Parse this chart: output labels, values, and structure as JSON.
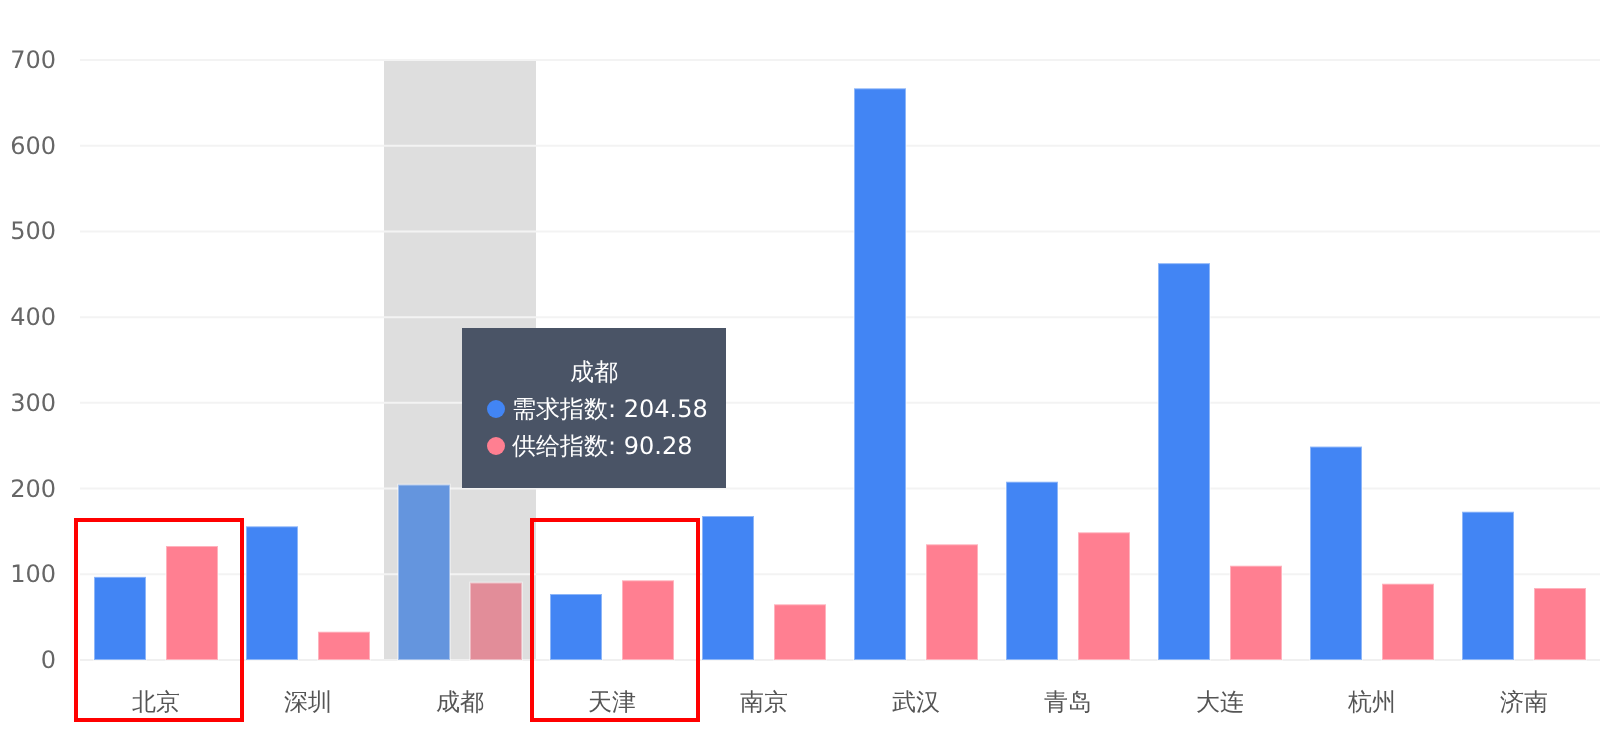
{
  "chart_data": {
    "type": "bar",
    "categories": [
      "北京",
      "深圳",
      "成都",
      "天津",
      "南京",
      "武汉",
      "青岛",
      "大连",
      "杭州",
      "济南"
    ],
    "series": [
      {
        "name": "需求指数",
        "color": "#4285f4",
        "colors": [
          "#4285f4",
          "#4285f4",
          "#6495de",
          "#4285f4",
          "#4285f4",
          "#4285f4",
          "#4285f4",
          "#4285f4",
          "#4285f4",
          "#4285f4"
        ],
        "values": [
          97,
          156,
          204.58,
          77,
          168,
          667,
          208,
          463,
          249,
          173
        ]
      },
      {
        "name": "供给指数",
        "color": "#ff7f91",
        "colors": [
          "#ff7f91",
          "#ff7f91",
          "#e28d99",
          "#ff7f91",
          "#ff7f91",
          "#ff7f91",
          "#ff7f91",
          "#ff7f91",
          "#ff7f91",
          "#ff7f91"
        ],
        "values": [
          133,
          33,
          90.28,
          93,
          65,
          135,
          149,
          110,
          89,
          84
        ]
      }
    ],
    "ylim": [
      0,
      700
    ],
    "yticks": [
      0,
      100,
      200,
      300,
      400,
      500,
      600,
      700
    ],
    "grid": "y",
    "legend": "center",
    "annotations": [
      ": 204.58",
      ": 90.28"
    ],
    "bands": [
      {
        "axis": "x",
        "from": "成都",
        "to": "成都",
        "color": "#dedede"
      }
    ]
  }
}
